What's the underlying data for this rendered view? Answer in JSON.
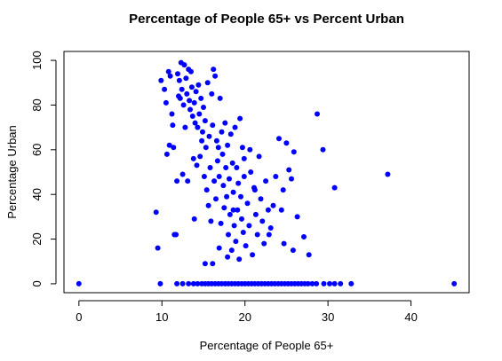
{
  "chart_data": {
    "type": "scatter",
    "title": "Percentage of People 65+ vs Percent Urban",
    "xlabel": "Percentage of People 65+",
    "ylabel": "Percentage Urban",
    "xlim": [
      -1.8,
      47
    ],
    "ylim": [
      -4,
      104
    ],
    "xticks": [
      0,
      10,
      20,
      30,
      40
    ],
    "yticks": [
      0,
      20,
      40,
      60,
      80,
      100
    ],
    "xtick_labels": [
      "0",
      "10",
      "20",
      "30",
      "40"
    ],
    "ytick_labels": [
      "0",
      "20",
      "40",
      "60",
      "80",
      "100"
    ],
    "point_color": "#0000ff",
    "grid": false,
    "points": [
      [
        0,
        0
      ],
      [
        9.8,
        0
      ],
      [
        45.2,
        0
      ],
      [
        11.8,
        0
      ],
      [
        12.5,
        0
      ],
      [
        13.2,
        0
      ],
      [
        13.8,
        0
      ],
      [
        14.3,
        0
      ],
      [
        14.8,
        0
      ],
      [
        15.2,
        0
      ],
      [
        15.6,
        0
      ],
      [
        16,
        0
      ],
      [
        16.4,
        0
      ],
      [
        16.8,
        0
      ],
      [
        17.2,
        0
      ],
      [
        17.6,
        0
      ],
      [
        18,
        0
      ],
      [
        18.4,
        0
      ],
      [
        18.8,
        0
      ],
      [
        19.2,
        0
      ],
      [
        19.6,
        0
      ],
      [
        20,
        0
      ],
      [
        20.4,
        0
      ],
      [
        20.8,
        0
      ],
      [
        21.2,
        0
      ],
      [
        21.6,
        0
      ],
      [
        22,
        0
      ],
      [
        22.4,
        0
      ],
      [
        22.8,
        0
      ],
      [
        23.2,
        0
      ],
      [
        23.6,
        0
      ],
      [
        24,
        0
      ],
      [
        24.4,
        0
      ],
      [
        24.8,
        0
      ],
      [
        25.2,
        0
      ],
      [
        25.6,
        0
      ],
      [
        26,
        0
      ],
      [
        26.4,
        0
      ],
      [
        26.8,
        0
      ],
      [
        27.2,
        0
      ],
      [
        27.6,
        0
      ],
      [
        28.1,
        0
      ],
      [
        28.6,
        0
      ],
      [
        29.5,
        0
      ],
      [
        30.2,
        0
      ],
      [
        30.8,
        0
      ],
      [
        31.5,
        0
      ],
      [
        32.8,
        0
      ],
      [
        9.3,
        32
      ],
      [
        9.9,
        91
      ],
      [
        10.3,
        87
      ],
      [
        10.5,
        81
      ],
      [
        10.6,
        58
      ],
      [
        10.8,
        95
      ],
      [
        11,
        93
      ],
      [
        11.2,
        76
      ],
      [
        11.3,
        71
      ],
      [
        11.5,
        22
      ],
      [
        11.7,
        22
      ],
      [
        11.8,
        46
      ],
      [
        11.9,
        94
      ],
      [
        12,
        84
      ],
      [
        12.1,
        91
      ],
      [
        12.2,
        83
      ],
      [
        12.3,
        99
      ],
      [
        12.4,
        87
      ],
      [
        12.5,
        49
      ],
      [
        12.6,
        80
      ],
      [
        12.7,
        98
      ],
      [
        12.8,
        70
      ],
      [
        12.9,
        92
      ],
      [
        13,
        85
      ],
      [
        13.1,
        46
      ],
      [
        13.2,
        96
      ],
      [
        13.3,
        82
      ],
      [
        13.4,
        78
      ],
      [
        13.5,
        95
      ],
      [
        13.6,
        88
      ],
      [
        13.7,
        75
      ],
      [
        13.8,
        56
      ],
      [
        13.9,
        81
      ],
      [
        14,
        72
      ],
      [
        14.1,
        86
      ],
      [
        14.2,
        53
      ],
      [
        14.3,
        70
      ],
      [
        14.4,
        89
      ],
      [
        14.5,
        76
      ],
      [
        14.6,
        57
      ],
      [
        14.7,
        83
      ],
      [
        14.8,
        64
      ],
      [
        14.9,
        68
      ],
      [
        15,
        79
      ],
      [
        15.1,
        48
      ],
      [
        15.2,
        73
      ],
      [
        15.3,
        61
      ],
      [
        15.4,
        42
      ],
      [
        15.5,
        90
      ],
      [
        15.6,
        35
      ],
      [
        15.7,
        66
      ],
      [
        15.8,
        52
      ],
      [
        15.9,
        28
      ],
      [
        16,
        85
      ],
      [
        16.1,
        71
      ],
      [
        16.2,
        96
      ],
      [
        16.3,
        46
      ],
      [
        16.4,
        93
      ],
      [
        16.5,
        38
      ],
      [
        16.6,
        64
      ],
      [
        16.7,
        55
      ],
      [
        16.8,
        61
      ],
      [
        16.9,
        48
      ],
      [
        17,
        83
      ],
      [
        17.1,
        27
      ],
      [
        17.2,
        68
      ],
      [
        17.3,
        58
      ],
      [
        17.4,
        44
      ],
      [
        17.5,
        34
      ],
      [
        17.6,
        72
      ],
      [
        17.7,
        52
      ],
      [
        17.8,
        39
      ],
      [
        17.9,
        62
      ],
      [
        18,
        22
      ],
      [
        18.1,
        47
      ],
      [
        18.2,
        31
      ],
      [
        18.3,
        67
      ],
      [
        18.4,
        15
      ],
      [
        18.5,
        54
      ],
      [
        18.6,
        41
      ],
      [
        18.7,
        26
      ],
      [
        18.8,
        70
      ],
      [
        18.9,
        19
      ],
      [
        19,
        52
      ],
      [
        19.1,
        33
      ],
      [
        19.2,
        45
      ],
      [
        19.3,
        11
      ],
      [
        19.4,
        74
      ],
      [
        19.5,
        39
      ],
      [
        19.6,
        29
      ],
      [
        19.7,
        61
      ],
      [
        19.8,
        23
      ],
      [
        19.9,
        48
      ],
      [
        20.1,
        17
      ],
      [
        20.3,
        36
      ],
      [
        20.5,
        26
      ],
      [
        20.7,
        50
      ],
      [
        20.9,
        13
      ],
      [
        21.1,
        43
      ],
      [
        21.3,
        31
      ],
      [
        21.5,
        22
      ],
      [
        21.7,
        57
      ],
      [
        21.9,
        38
      ],
      [
        22.1,
        28
      ],
      [
        22.3,
        18
      ],
      [
        22.5,
        46
      ],
      [
        22.8,
        33
      ],
      [
        23.1,
        25
      ],
      [
        23.4,
        35
      ],
      [
        23.7,
        48
      ],
      [
        24.1,
        65
      ],
      [
        24.4,
        33
      ],
      [
        24.7,
        18
      ],
      [
        25,
        63
      ],
      [
        25.3,
        51
      ],
      [
        25.6,
        47
      ],
      [
        25.9,
        59
      ],
      [
        26.3,
        30
      ],
      [
        27.1,
        21
      ],
      [
        27.7,
        13
      ],
      [
        28.7,
        76
      ],
      [
        29.4,
        60
      ],
      [
        30.8,
        43
      ],
      [
        37.2,
        49
      ],
      [
        9.5,
        16
      ],
      [
        10.9,
        62
      ],
      [
        11.4,
        61
      ],
      [
        13.9,
        29
      ],
      [
        15.2,
        9
      ],
      [
        16.1,
        9
      ],
      [
        16.9,
        16
      ],
      [
        17.9,
        12
      ],
      [
        18.6,
        33
      ],
      [
        19.9,
        56
      ],
      [
        20.6,
        60
      ],
      [
        21.2,
        42
      ],
      [
        22.9,
        22
      ],
      [
        24.6,
        42
      ],
      [
        25.8,
        15
      ]
    ]
  }
}
